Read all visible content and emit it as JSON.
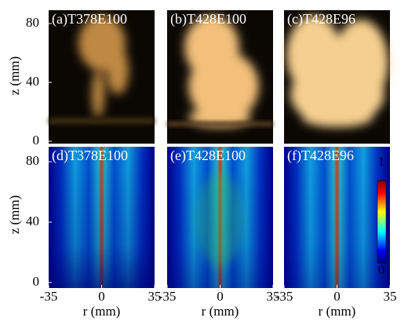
{
  "panels": [
    {
      "label": "(a)T378E100"
    },
    {
      "label": "(b)T428E100"
    },
    {
      "label": "(c)T428E96"
    },
    {
      "label": "(d)T378E100"
    },
    {
      "label": "(e)T428E100"
    },
    {
      "label": "(f)T428E96"
    }
  ],
  "y_axes": [
    {
      "label": "z (mm)",
      "ticks": [
        0,
        40,
        80
      ]
    },
    {
      "label": "z (mm)",
      "ticks": [
        0,
        40,
        80
      ]
    }
  ],
  "x_axes": [
    {
      "label": "r (mm)",
      "ticks": [
        -35,
        0,
        35
      ]
    },
    {
      "label": "r (mm)",
      "ticks": [
        -35,
        0,
        35
      ]
    },
    {
      "label": "r (mm)",
      "ticks": [
        -35,
        0,
        35
      ]
    }
  ],
  "colorbar": {
    "ticks": [
      0,
      1
    ]
  }
}
